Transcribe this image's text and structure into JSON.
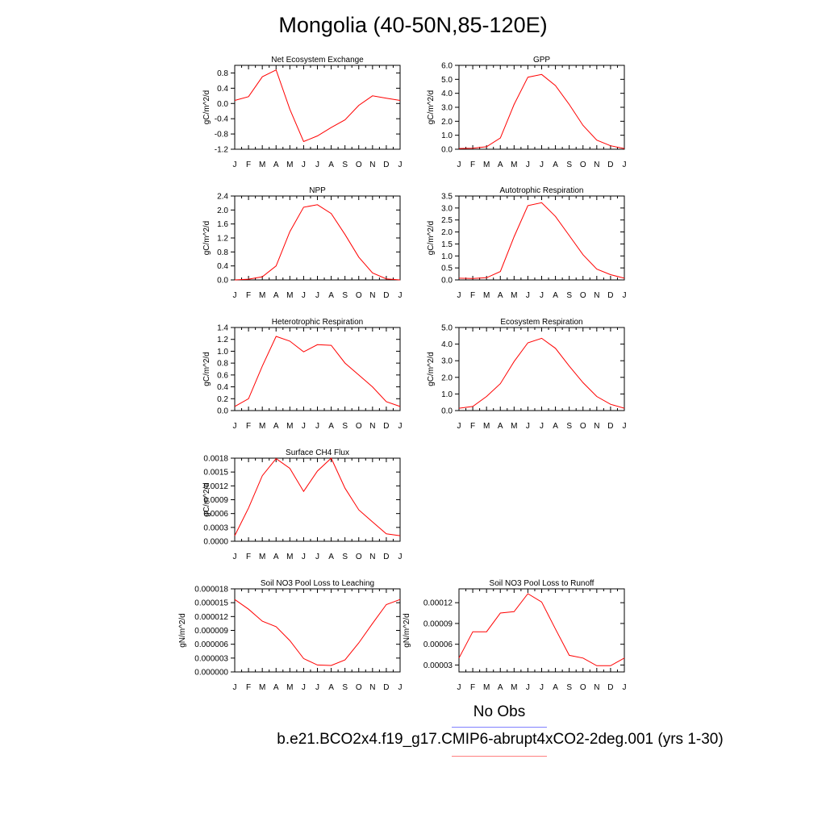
{
  "title": "Mongolia (40-50N,85-120E)",
  "months": [
    "J",
    "F",
    "M",
    "A",
    "M",
    "J",
    "J",
    "A",
    "S",
    "O",
    "N",
    "D",
    "J"
  ],
  "legend": {
    "obs_label": "No Obs",
    "case_label": "b.e21.BCO2x4.f19_g17.CMIP6-abrupt4xCO2-2deg.001 (yrs 1-30)",
    "obs_color": "#8080ff",
    "model_color": "#ff8080"
  },
  "line_color": "#ff0000",
  "chart_data": [
    {
      "type": "line",
      "title": "Net Ecosystem Exchange",
      "ylabel": "gC/m^2/d",
      "ylim": [
        -1.2,
        1.0
      ],
      "yticks": [
        -1.2,
        -0.8,
        -0.4,
        0.0,
        0.4,
        0.8
      ],
      "ytick_labels": [
        "-1.2",
        "-0.8",
        "-0.4",
        "0.0",
        "0.4",
        "0.8"
      ],
      "values": [
        0.08,
        0.18,
        0.7,
        0.88,
        -0.15,
        -1.0,
        -0.85,
        -0.63,
        -0.43,
        -0.05,
        0.2,
        0.14,
        0.08
      ]
    },
    {
      "type": "line",
      "title": "GPP",
      "ylabel": "gC/m^2/d",
      "ylim": [
        0,
        6.0
      ],
      "yticks": [
        0,
        1,
        2,
        3,
        4,
        5,
        6
      ],
      "ytick_labels": [
        "0.0",
        "1.0",
        "2.0",
        "3.0",
        "4.0",
        "5.0",
        "6.0"
      ],
      "values": [
        0.05,
        0.07,
        0.18,
        0.8,
        3.2,
        5.15,
        5.35,
        4.55,
        3.2,
        1.7,
        0.65,
        0.25,
        0.05
      ]
    },
    {
      "type": "line",
      "title": "NPP",
      "ylabel": "gC/m^2/d",
      "ylim": [
        0,
        2.4
      ],
      "yticks": [
        0,
        0.4,
        0.8,
        1.2,
        1.6,
        2.0,
        2.4
      ],
      "ytick_labels": [
        "0.0",
        "0.4",
        "0.8",
        "1.2",
        "1.6",
        "2.0",
        "2.4"
      ],
      "values": [
        0.0,
        0.02,
        0.09,
        0.4,
        1.38,
        2.08,
        2.15,
        1.9,
        1.3,
        0.65,
        0.2,
        0.03,
        0.0
      ]
    },
    {
      "type": "line",
      "title": "Autotrophic Respiration",
      "ylabel": "gC/m^2/d",
      "ylim": [
        0,
        3.5
      ],
      "yticks": [
        0,
        0.5,
        1.0,
        1.5,
        2.0,
        2.5,
        3.0,
        3.5
      ],
      "ytick_labels": [
        "0.0",
        "0.5",
        "1.0",
        "1.5",
        "2.0",
        "2.5",
        "3.0",
        "3.5"
      ],
      "values": [
        0.07,
        0.06,
        0.09,
        0.35,
        1.8,
        3.1,
        3.22,
        2.65,
        1.85,
        1.05,
        0.45,
        0.22,
        0.07
      ]
    },
    {
      "type": "line",
      "title": "Heterotrophic Respiration",
      "ylabel": "gC/m^2/d",
      "ylim": [
        0,
        1.4
      ],
      "yticks": [
        0,
        0.2,
        0.4,
        0.6,
        0.8,
        1.0,
        1.2,
        1.4
      ],
      "ytick_labels": [
        "0.0",
        "0.2",
        "0.4",
        "0.6",
        "0.8",
        "1.0",
        "1.2",
        "1.4"
      ],
      "values": [
        0.07,
        0.2,
        0.75,
        1.25,
        1.17,
        0.99,
        1.11,
        1.1,
        0.8,
        0.6,
        0.4,
        0.15,
        0.07
      ]
    },
    {
      "type": "line",
      "title": "Ecosystem Respiration",
      "ylabel": "gC/m^2/d",
      "ylim": [
        0,
        5.0
      ],
      "yticks": [
        0,
        1,
        2,
        3,
        4,
        5
      ],
      "ytick_labels": [
        "0.0",
        "1.0",
        "2.0",
        "3.0",
        "4.0",
        "5.0"
      ],
      "values": [
        0.14,
        0.25,
        0.85,
        1.62,
        2.95,
        4.08,
        4.35,
        3.75,
        2.68,
        1.68,
        0.85,
        0.38,
        0.14
      ]
    },
    {
      "type": "line",
      "title": "Surface CH4 Flux",
      "ylabel": "gC/m^2/d",
      "ylim": [
        0,
        0.0018
      ],
      "yticks": [
        0,
        0.0003,
        0.0006,
        0.0009,
        0.0012,
        0.0015,
        0.0018
      ],
      "ytick_labels": [
        "0.0000",
        "0.0003",
        "0.0006",
        "0.0009",
        "0.0012",
        "0.0015",
        "0.0018"
      ],
      "values": [
        0.00012,
        0.00072,
        0.00142,
        0.00179,
        0.00158,
        0.00108,
        0.00152,
        0.0018,
        0.00115,
        0.00068,
        0.00042,
        0.00016,
        0.00012
      ]
    },
    {
      "type": "line",
      "title": "Soil NO3 Pool Loss to Leaching",
      "ylabel": "gN/m^2/d",
      "ylim": [
        0,
        1.8e-05
      ],
      "yticks": [
        0,
        3e-06,
        6e-06,
        9e-06,
        1.2e-05,
        1.5e-05,
        1.8e-05
      ],
      "ytick_labels": [
        "0.000000",
        "0.000003",
        "0.000006",
        "0.000009",
        "0.000012",
        "0.000015",
        "0.000018"
      ],
      "values": [
        1.57e-05,
        1.36e-05,
        1.1e-05,
        9.8e-06,
        6.8e-06,
        2.9e-06,
        1.5e-06,
        1.4e-06,
        2.6e-06,
        6.3e-06,
        1.05e-05,
        1.46e-05,
        1.57e-05
      ]
    },
    {
      "type": "line",
      "title": "Soil NO3 Pool Loss to Runoff",
      "ylabel": "gN/m^2/d",
      "ylim": [
        2e-05,
        0.00014
      ],
      "yticks": [
        3e-05,
        6e-05,
        9e-05,
        0.00012
      ],
      "ytick_labels": [
        "0.00003",
        "0.00006",
        "0.00009",
        "0.00012"
      ],
      "values": [
        4e-05,
        7.8e-05,
        7.8e-05,
        0.000105,
        0.000107,
        0.000133,
        0.000121,
        8.2e-05,
        4.4e-05,
        4e-05,
        2.9e-05,
        2.9e-05,
        4e-05
      ]
    }
  ]
}
